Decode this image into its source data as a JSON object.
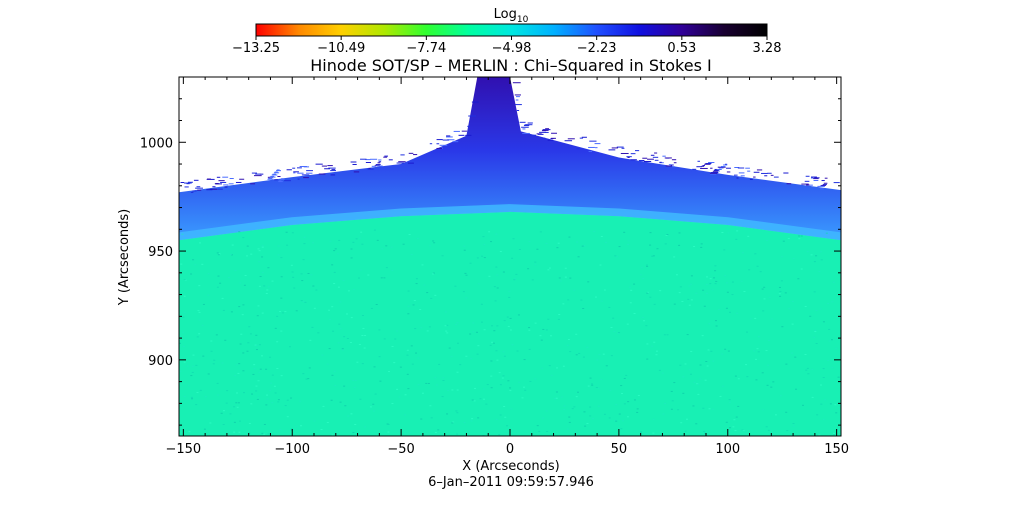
{
  "colorbar": {
    "label": "Log",
    "label_subscript": "10",
    "tick_labels": [
      "-13.25",
      "-10.49",
      "-7.74",
      "-4.98",
      "-2.23",
      "0.53",
      "3.28"
    ],
    "range": [
      -13.25,
      3.28
    ],
    "colormap": [
      "#ff0000",
      "#ff8800",
      "#ffd000",
      "#b0e800",
      "#30ff30",
      "#00ffa0",
      "#00e8e0",
      "#00b0ff",
      "#2050ff",
      "#1010e0",
      "#300098",
      "#180030",
      "#000000"
    ]
  },
  "chart_data": {
    "type": "heatmap",
    "title": "Hinode SOT/SP – MERLIN : Chi–Squared in Stokes I",
    "xlabel": "X (Arcseconds)",
    "ylabel": "Y (Arcseconds)",
    "xlim": [
      -152,
      152
    ],
    "ylim": [
      865,
      1030
    ],
    "xticks": [
      -150,
      -100,
      -50,
      0,
      50,
      100,
      150
    ],
    "xtick_labels": [
      "-150",
      "-100",
      "-50",
      "0",
      "50",
      "100",
      "150"
    ],
    "yticks": [
      900,
      950,
      1000
    ],
    "ytick_labels": [
      "900",
      "950",
      "1000"
    ],
    "limb_y": [
      {
        "x": -152,
        "y": 955
      },
      {
        "x": -100,
        "y": 962
      },
      {
        "x": -50,
        "y": 966
      },
      {
        "x": 0,
        "y": 968
      },
      {
        "x": 50,
        "y": 966
      },
      {
        "x": 100,
        "y": 962
      },
      {
        "x": 152,
        "y": 955
      }
    ],
    "signal_top_y": [
      {
        "x": -152,
        "y": 977
      },
      {
        "x": -100,
        "y": 984
      },
      {
        "x": -50,
        "y": 990
      },
      {
        "x": -20,
        "y": 1003
      },
      {
        "x": -15,
        "y": 1030
      },
      {
        "x": 0,
        "y": 1030
      },
      {
        "x": 5,
        "y": 1005
      },
      {
        "x": 50,
        "y": 993
      },
      {
        "x": 100,
        "y": 985
      },
      {
        "x": 152,
        "y": 978
      }
    ],
    "disk_log_value": -4.0,
    "off_limb_log_value": -1.5,
    "colors": {
      "disk": "#18f0b4",
      "limb_band": "#40b8ff",
      "off_limb": "#2a38e8",
      "off_limb_edge": "#3010b0",
      "no_data": "#ffffff"
    }
  },
  "timestamp": "6–Jan–2011 09:59:57.946"
}
